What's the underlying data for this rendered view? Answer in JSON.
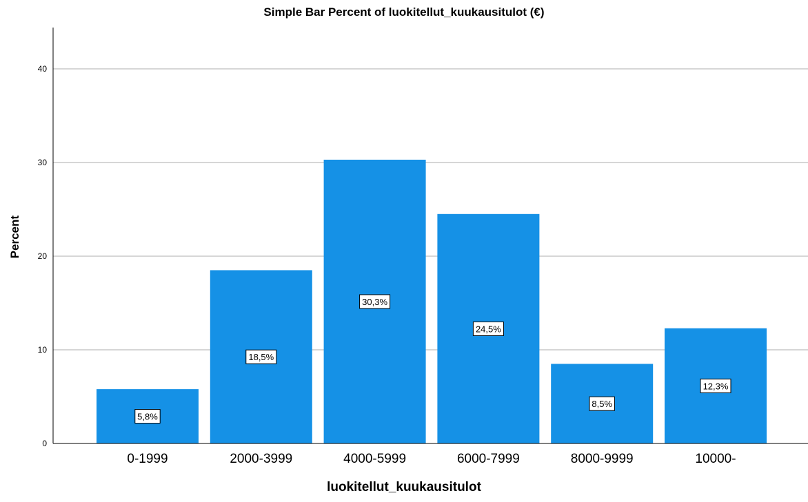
{
  "chart_data": {
    "type": "bar",
    "title": "Simple Bar Percent of luokitellut_kuukausitulot (€)",
    "xlabel": "luokitellut_kuukausitulot",
    "ylabel": "Percent",
    "categories": [
      "0-1999",
      "2000-3999",
      "4000-5999",
      "6000-7999",
      "8000-9999",
      "10000-"
    ],
    "values": [
      5.8,
      18.5,
      30.3,
      24.5,
      8.5,
      12.3
    ],
    "data_labels": [
      "5,8%",
      "18,5%",
      "30,3%",
      "24,5%",
      "8,5%",
      "12,3%"
    ],
    "yticks": [
      "0",
      "10",
      "20",
      "30",
      "40"
    ],
    "ylim": [
      0,
      44
    ],
    "grid": true,
    "legend": "none",
    "bar_color": "#1591e6"
  }
}
